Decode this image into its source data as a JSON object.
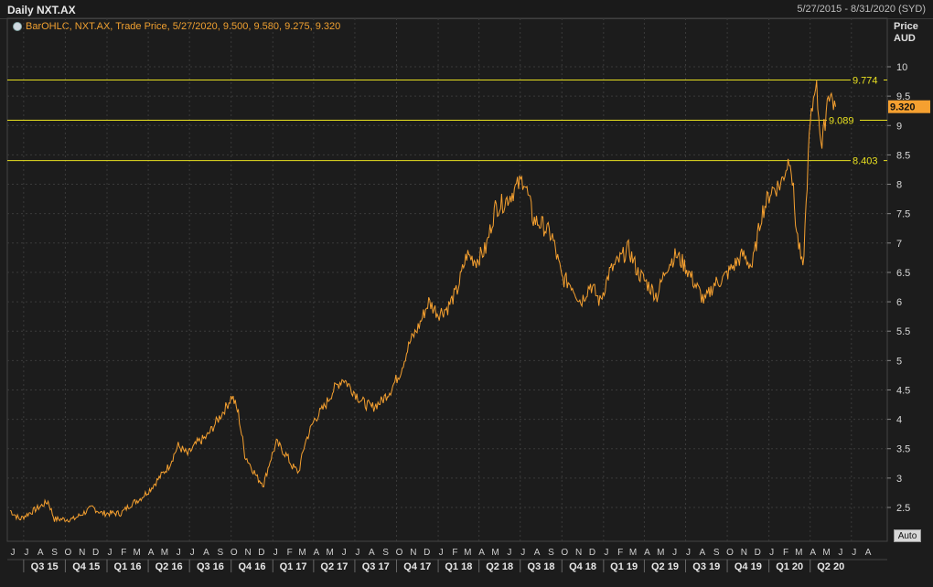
{
  "header": {
    "title": "Daily NXT.AX",
    "date_range": "5/27/2015 - 8/31/2020 (SYD)"
  },
  "legend": {
    "icon": "bar-ohlc-icon",
    "text": "BarOHLC, NXT.AX, Trade Price,  5/27/2020, 9.500, 9.580, 9.275, 9.320"
  },
  "y_unit": {
    "line1": "Price",
    "line2": "AUD"
  },
  "auto_button": {
    "label": "Auto"
  },
  "colors": {
    "background": "#1c1c1c",
    "grid": "#3a3a3a",
    "price": "#f5a030",
    "level": "#e8e020",
    "last_price_bg": "#f5a030"
  },
  "chart_data": {
    "type": "line",
    "title": "Daily NXT.AX",
    "ylabel": "Price AUD",
    "ylim": [
      2.2,
      10.5
    ],
    "y_ticks": [
      2.5,
      3,
      3.5,
      4,
      4.5,
      5,
      5.5,
      6,
      6.5,
      7,
      7.5,
      8,
      8.5,
      9,
      9.5,
      10
    ],
    "x_range": [
      "2015-06-01",
      "2020-08-31"
    ],
    "month_labels": [
      "J",
      "J",
      "A",
      "S",
      "O",
      "N",
      "D",
      "J",
      "F",
      "M",
      "A",
      "M",
      "J",
      "J",
      "A",
      "S",
      "O",
      "N",
      "D",
      "J",
      "F",
      "M",
      "A",
      "M",
      "J",
      "J",
      "A",
      "S",
      "O",
      "N",
      "D",
      "J",
      "F",
      "M",
      "A",
      "M",
      "J",
      "J",
      "A",
      "S",
      "O",
      "N",
      "D",
      "J",
      "F",
      "M",
      "A",
      "M",
      "J",
      "J",
      "A",
      "S",
      "O",
      "N",
      "D",
      "J",
      "F",
      "M",
      "A",
      "M",
      "J",
      "J",
      "A"
    ],
    "quarter_labels": [
      "Q3 15",
      "Q4 15",
      "Q1 16",
      "Q2 16",
      "Q3 16",
      "Q4 16",
      "Q1 17",
      "Q2 17",
      "Q3 17",
      "Q4 17",
      "Q1 18",
      "Q2 18",
      "Q3 18",
      "Q4 18",
      "Q1 19",
      "Q2 19",
      "Q3 19",
      "Q4 19",
      "Q1 20",
      "Q2 20"
    ],
    "horizontal_levels": [
      {
        "value": 9.774,
        "label": "9.774"
      },
      {
        "value": 9.089,
        "label": "9.089"
      },
      {
        "value": 8.403,
        "label": "8.403"
      }
    ],
    "last_price": {
      "value": 9.32,
      "label": "9.320"
    },
    "series": [
      {
        "points": [
          [
            "2015-06-01",
            2.45
          ],
          [
            "2015-06-22",
            2.3
          ],
          [
            "2015-07-13",
            2.4
          ],
          [
            "2015-08-03",
            2.5
          ],
          [
            "2015-08-24",
            2.6
          ],
          [
            "2015-09-07",
            2.3
          ],
          [
            "2015-09-28",
            2.3
          ],
          [
            "2015-10-19",
            2.3
          ],
          [
            "2015-11-09",
            2.4
          ],
          [
            "2015-11-30",
            2.5
          ],
          [
            "2015-12-21",
            2.4
          ],
          [
            "2016-01-11",
            2.4
          ],
          [
            "2016-02-01",
            2.4
          ],
          [
            "2016-02-22",
            2.55
          ],
          [
            "2016-03-14",
            2.65
          ],
          [
            "2016-04-04",
            2.8
          ],
          [
            "2016-04-25",
            3.0
          ],
          [
            "2016-05-16",
            3.2
          ],
          [
            "2016-06-06",
            3.55
          ],
          [
            "2016-06-27",
            3.4
          ],
          [
            "2016-07-18",
            3.6
          ],
          [
            "2016-08-08",
            3.7
          ],
          [
            "2016-08-29",
            3.95
          ],
          [
            "2016-09-19",
            4.2
          ],
          [
            "2016-10-03",
            4.4
          ],
          [
            "2016-10-17",
            4.1
          ],
          [
            "2016-10-31",
            3.4
          ],
          [
            "2016-11-14",
            3.2
          ],
          [
            "2016-11-28",
            3.0
          ],
          [
            "2016-12-12",
            2.9
          ],
          [
            "2016-12-26",
            3.3
          ],
          [
            "2017-01-09",
            3.6
          ],
          [
            "2017-01-30",
            3.4
          ],
          [
            "2017-02-13",
            3.2
          ],
          [
            "2017-02-27",
            3.1
          ],
          [
            "2017-03-13",
            3.6
          ],
          [
            "2017-04-03",
            4.0
          ],
          [
            "2017-04-24",
            4.2
          ],
          [
            "2017-05-15",
            4.5
          ],
          [
            "2017-06-05",
            4.7
          ],
          [
            "2017-06-26",
            4.5
          ],
          [
            "2017-07-17",
            4.3
          ],
          [
            "2017-08-07",
            4.2
          ],
          [
            "2017-08-28",
            4.3
          ],
          [
            "2017-09-18",
            4.5
          ],
          [
            "2017-10-09",
            4.8
          ],
          [
            "2017-10-30",
            5.3
          ],
          [
            "2017-11-20",
            5.6
          ],
          [
            "2017-12-11",
            6.0
          ],
          [
            "2018-01-01",
            5.8
          ],
          [
            "2018-01-22",
            5.9
          ],
          [
            "2018-02-12",
            6.2
          ],
          [
            "2018-03-05",
            6.8
          ],
          [
            "2018-03-26",
            6.7
          ],
          [
            "2018-04-16",
            6.9
          ],
          [
            "2018-05-07",
            7.6
          ],
          [
            "2018-05-28",
            7.7
          ],
          [
            "2018-06-18",
            7.9
          ],
          [
            "2018-07-09",
            8.1
          ],
          [
            "2018-07-30",
            7.4
          ],
          [
            "2018-08-20",
            7.3
          ],
          [
            "2018-09-10",
            7.1
          ],
          [
            "2018-10-01",
            6.4
          ],
          [
            "2018-10-22",
            6.3
          ],
          [
            "2018-11-12",
            6.0
          ],
          [
            "2018-12-03",
            6.3
          ],
          [
            "2018-12-24",
            6.0
          ],
          [
            "2019-01-14",
            6.5
          ],
          [
            "2019-02-04",
            6.7
          ],
          [
            "2019-02-25",
            6.9
          ],
          [
            "2019-03-18",
            6.5
          ],
          [
            "2019-04-08",
            6.3
          ],
          [
            "2019-04-29",
            6.1
          ],
          [
            "2019-05-20",
            6.6
          ],
          [
            "2019-06-10",
            6.8
          ],
          [
            "2019-07-01",
            6.6
          ],
          [
            "2019-07-22",
            6.3
          ],
          [
            "2019-08-12",
            6.0
          ],
          [
            "2019-09-02",
            6.3
          ],
          [
            "2019-09-23",
            6.4
          ],
          [
            "2019-10-14",
            6.6
          ],
          [
            "2019-11-04",
            6.8
          ],
          [
            "2019-11-25",
            6.6
          ],
          [
            "2019-12-16",
            7.5
          ],
          [
            "2020-01-06",
            7.9
          ],
          [
            "2020-01-27",
            8.0
          ],
          [
            "2020-02-17",
            8.5
          ],
          [
            "2020-03-02",
            7.2
          ],
          [
            "2020-03-16",
            6.5
          ],
          [
            "2020-03-30",
            8.8
          ],
          [
            "2020-04-13",
            9.8
          ],
          [
            "2020-04-27",
            8.6
          ],
          [
            "2020-05-11",
            9.6
          ],
          [
            "2020-05-27",
            9.32
          ]
        ]
      }
    ]
  }
}
